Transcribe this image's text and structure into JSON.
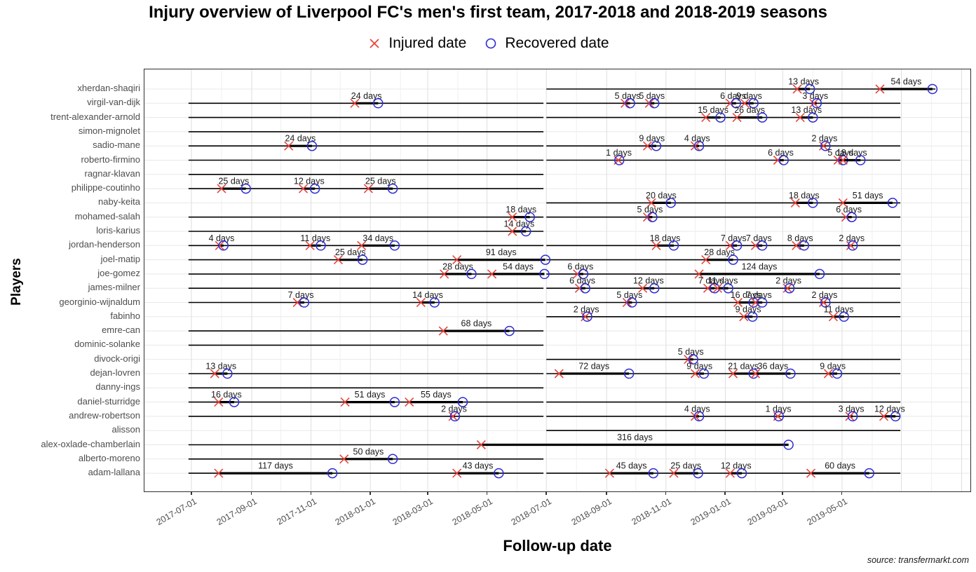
{
  "title": "Injury overview of Liverpool FC's men's first team, 2017-2018 and 2018-2019 seasons",
  "legend": {
    "injured_label": "Injured date",
    "recovered_label": "Recovered date"
  },
  "y_axis": {
    "label": "Players"
  },
  "x_axis": {
    "label": "Follow-up date",
    "ticks": [
      "2017-07-01",
      "2017-09-01",
      "2017-11-01",
      "2018-01-01",
      "2018-03-01",
      "2018-05-01",
      "2018-07-01",
      "2018-09-01",
      "2018-11-01",
      "2019-01-01",
      "2019-03-01",
      "2019-05-01"
    ]
  },
  "source": "source: transfermarkt.com",
  "colors": {
    "injured": "#e8453c",
    "recovered": "#2b2bd5",
    "line": "#000000",
    "grid_major": "#dedede",
    "grid_minor": "#efefef",
    "row_grid": "#e8e8e8",
    "axis_text": "#4d4d4d",
    "label_text": "#1a1a1a"
  },
  "chart_data": {
    "type": "timeline",
    "unit_suffix": " days",
    "followup_seasons": {
      "s1": [
        "2017-06-28",
        "2018-06-28"
      ],
      "s2": [
        "2018-07-01",
        "2019-06-30"
      ]
    },
    "players": [
      {
        "name": "xherdan-shaqiri",
        "followup": [
          [
            "2018-07-01",
            "2019-08-05"
          ]
        ],
        "injuries": [
          {
            "days": 13,
            "injured": "2019-03-16"
          },
          {
            "days": 54,
            "injured": "2019-06-09"
          }
        ]
      },
      {
        "name": "virgil-van-dijk",
        "followup": [
          [
            "2017-06-28",
            "2018-06-28"
          ],
          [
            "2018-07-01",
            "2019-06-30"
          ]
        ],
        "injuries": [
          {
            "days": 24,
            "injured": "2017-12-16"
          },
          {
            "days": 5,
            "injured": "2018-09-20"
          },
          {
            "days": 5,
            "injured": "2018-10-15"
          },
          {
            "days": 6,
            "injured": "2019-01-06"
          },
          {
            "days": 9,
            "injured": "2019-01-21"
          },
          {
            "days": 3,
            "injured": "2019-04-02"
          }
        ]
      },
      {
        "name": "trent-alexander-arnold",
        "followup": [
          [
            "2017-06-28",
            "2018-06-28"
          ],
          [
            "2018-07-01",
            "2019-06-30"
          ]
        ],
        "injuries": [
          {
            "days": 15,
            "injured": "2018-12-12"
          },
          {
            "days": 26,
            "injured": "2019-01-13"
          },
          {
            "days": 13,
            "injured": "2019-03-19"
          }
        ]
      },
      {
        "name": "simon-mignolet",
        "followup": [
          [
            "2017-06-28",
            "2018-06-28"
          ]
        ],
        "injuries": []
      },
      {
        "name": "sadio-mane",
        "followup": [
          [
            "2017-06-28",
            "2018-06-28"
          ],
          [
            "2018-07-01",
            "2019-06-30"
          ]
        ],
        "injuries": [
          {
            "days": 24,
            "injured": "2017-10-09"
          },
          {
            "days": 9,
            "injured": "2018-10-13"
          },
          {
            "days": 4,
            "injured": "2018-12-01"
          },
          {
            "days": 2,
            "injured": "2019-04-12"
          }
        ]
      },
      {
        "name": "roberto-firmino",
        "followup": [
          [
            "2017-06-28",
            "2018-06-28"
          ],
          [
            "2018-07-01",
            "2019-06-30"
          ]
        ],
        "injuries": [
          {
            "days": 1,
            "injured": "2018-09-13"
          },
          {
            "days": 6,
            "injured": "2019-02-24"
          },
          {
            "days": 5,
            "injured": "2019-04-27"
          },
          {
            "days": 18,
            "injured": "2019-05-02"
          }
        ]
      },
      {
        "name": "ragnar-klavan",
        "followup": [
          [
            "2017-06-28",
            "2018-06-28"
          ]
        ],
        "injuries": []
      },
      {
        "name": "philippe-coutinho",
        "followup": [
          [
            "2017-06-28",
            "2018-06-28"
          ]
        ],
        "injuries": [
          {
            "days": 25,
            "injured": "2017-08-01"
          },
          {
            "days": 12,
            "injured": "2017-10-24"
          },
          {
            "days": 25,
            "injured": "2017-12-30"
          }
        ]
      },
      {
        "name": "naby-keita",
        "followup": [
          [
            "2018-07-01",
            "2019-06-30"
          ]
        ],
        "injuries": [
          {
            "days": 20,
            "injured": "2018-10-17"
          },
          {
            "days": 18,
            "injured": "2019-03-14"
          },
          {
            "days": 51,
            "injured": "2019-05-02"
          }
        ]
      },
      {
        "name": "mohamed-salah",
        "followup": [
          [
            "2017-06-28",
            "2018-06-28"
          ],
          [
            "2018-07-01",
            "2019-06-30"
          ]
        ],
        "injuries": [
          {
            "days": 18,
            "injured": "2018-05-27"
          },
          {
            "days": 5,
            "injured": "2018-10-13"
          },
          {
            "days": 6,
            "injured": "2019-05-05"
          }
        ]
      },
      {
        "name": "loris-karius",
        "followup": [
          [
            "2017-06-28",
            "2018-06-28"
          ]
        ],
        "injuries": [
          {
            "days": 14,
            "injured": "2018-05-27"
          }
        ]
      },
      {
        "name": "jordan-henderson",
        "followup": [
          [
            "2017-06-28",
            "2018-06-28"
          ],
          [
            "2018-07-01",
            "2019-06-30"
          ]
        ],
        "injuries": [
          {
            "days": 4,
            "injured": "2017-07-30"
          },
          {
            "days": 11,
            "injured": "2017-10-31"
          },
          {
            "days": 34,
            "injured": "2017-12-23"
          },
          {
            "days": 18,
            "injured": "2018-10-22"
          },
          {
            "days": 7,
            "injured": "2019-01-06"
          },
          {
            "days": 7,
            "injured": "2019-02-01"
          },
          {
            "days": 8,
            "injured": "2019-03-15"
          },
          {
            "days": 2,
            "injured": "2019-05-10"
          }
        ]
      },
      {
        "name": "joel-matip",
        "followup": [
          [
            "2017-06-28",
            "2018-06-28"
          ],
          [
            "2018-07-01",
            "2019-06-30"
          ]
        ],
        "injuries": [
          {
            "days": 25,
            "injured": "2017-11-29"
          },
          {
            "days": 91,
            "injured": "2018-03-31"
          },
          {
            "days": 28,
            "injured": "2018-12-12"
          }
        ]
      },
      {
        "name": "joe-gomez",
        "followup": [
          [
            "2017-06-28",
            "2018-06-28"
          ],
          [
            "2018-07-01",
            "2019-06-30"
          ]
        ],
        "injuries": [
          {
            "days": 28,
            "injured": "2018-03-18"
          },
          {
            "days": 54,
            "injured": "2018-05-06"
          },
          {
            "days": 6,
            "injured": "2018-08-02"
          },
          {
            "days": 124,
            "injured": "2018-12-05"
          }
        ]
      },
      {
        "name": "james-milner",
        "followup": [
          [
            "2017-06-28",
            "2018-06-28"
          ],
          [
            "2018-07-01",
            "2019-06-30"
          ]
        ],
        "injuries": [
          {
            "days": 6,
            "injured": "2018-08-04"
          },
          {
            "days": 12,
            "injured": "2018-10-08"
          },
          {
            "days": 7,
            "injured": "2018-12-14"
          },
          {
            "days": 11,
            "injured": "2018-12-24"
          },
          {
            "days": 2,
            "injured": "2019-03-06"
          }
        ]
      },
      {
        "name": "georginio-wijnaldum",
        "followup": [
          [
            "2017-06-28",
            "2018-06-28"
          ],
          [
            "2018-07-01",
            "2019-06-30"
          ]
        ],
        "injuries": [
          {
            "days": 7,
            "injured": "2017-10-18"
          },
          {
            "days": 14,
            "injured": "2018-02-22"
          },
          {
            "days": 5,
            "injured": "2018-09-22"
          },
          {
            "days": 16,
            "injured": "2019-01-14"
          },
          {
            "days": 7,
            "injured": "2019-02-01"
          },
          {
            "days": 2,
            "injured": "2019-04-12"
          }
        ]
      },
      {
        "name": "fabinho",
        "followup": [
          [
            "2018-07-01",
            "2019-06-30"
          ]
        ],
        "injuries": [
          {
            "days": 2,
            "injured": "2018-08-10"
          },
          {
            "days": 9,
            "injured": "2019-01-20"
          },
          {
            "days": 11,
            "injured": "2019-04-22"
          }
        ]
      },
      {
        "name": "emre-can",
        "followup": [
          [
            "2017-06-28",
            "2018-06-28"
          ]
        ],
        "injuries": [
          {
            "days": 68,
            "injured": "2018-03-17"
          }
        ]
      },
      {
        "name": "dominic-solanke",
        "followup": [
          [
            "2017-06-28",
            "2018-06-28"
          ]
        ],
        "injuries": []
      },
      {
        "name": "divock-origi",
        "followup": [
          [
            "2018-07-01",
            "2019-06-30"
          ]
        ],
        "injuries": [
          {
            "days": 5,
            "injured": "2018-11-24"
          }
        ]
      },
      {
        "name": "dejan-lovren",
        "followup": [
          [
            "2017-06-28",
            "2018-06-28"
          ],
          [
            "2018-07-01",
            "2019-06-30"
          ]
        ],
        "injuries": [
          {
            "days": 13,
            "injured": "2017-07-25"
          },
          {
            "days": 72,
            "injured": "2018-07-14"
          },
          {
            "days": 9,
            "injured": "2018-12-01"
          },
          {
            "days": 21,
            "injured": "2019-01-09"
          },
          {
            "days": 36,
            "injured": "2019-02-01"
          },
          {
            "days": 9,
            "injured": "2019-04-17"
          }
        ]
      },
      {
        "name": "danny-ings",
        "followup": [
          [
            "2017-06-28",
            "2018-06-28"
          ]
        ],
        "injuries": []
      },
      {
        "name": "daniel-sturridge",
        "followup": [
          [
            "2017-06-28",
            "2018-06-28"
          ],
          [
            "2018-07-01",
            "2019-06-30"
          ]
        ],
        "injuries": [
          {
            "days": 16,
            "injured": "2017-07-29"
          },
          {
            "days": 51,
            "injured": "2017-12-06"
          },
          {
            "days": 55,
            "injured": "2018-02-10"
          }
        ]
      },
      {
        "name": "andrew-robertson",
        "followup": [
          [
            "2017-06-28",
            "2018-06-28"
          ],
          [
            "2018-07-01",
            "2019-06-30"
          ]
        ],
        "injuries": [
          {
            "days": 2,
            "injured": "2018-03-27"
          },
          {
            "days": 4,
            "injured": "2018-12-01"
          },
          {
            "days": 1,
            "injured": "2019-02-24"
          },
          {
            "days": 3,
            "injured": "2019-05-09"
          },
          {
            "days": 12,
            "injured": "2019-06-13"
          }
        ]
      },
      {
        "name": "alisson",
        "followup": [
          [
            "2018-07-01",
            "2019-06-30"
          ]
        ],
        "injuries": []
      },
      {
        "name": "alex-oxlade-chamberlain",
        "followup": [
          [
            "2017-06-28",
            "2019-03-07"
          ]
        ],
        "injuries": [
          {
            "days": 316,
            "injured": "2018-04-25"
          }
        ]
      },
      {
        "name": "alberto-moreno",
        "followup": [
          [
            "2017-06-28",
            "2018-06-28"
          ]
        ],
        "injuries": [
          {
            "days": 50,
            "injured": "2017-12-05"
          }
        ]
      },
      {
        "name": "adam-lallana",
        "followup": [
          [
            "2017-06-28",
            "2018-06-28"
          ],
          [
            "2018-07-01",
            "2019-06-30"
          ]
        ],
        "injuries": [
          {
            "days": 117,
            "injured": "2017-07-29"
          },
          {
            "days": 43,
            "injured": "2018-03-31"
          },
          {
            "days": 45,
            "injured": "2018-09-04"
          },
          {
            "days": 25,
            "injured": "2018-11-09"
          },
          {
            "days": 12,
            "injured": "2019-01-06"
          },
          {
            "days": 60,
            "injured": "2019-03-30"
          }
        ]
      }
    ]
  }
}
